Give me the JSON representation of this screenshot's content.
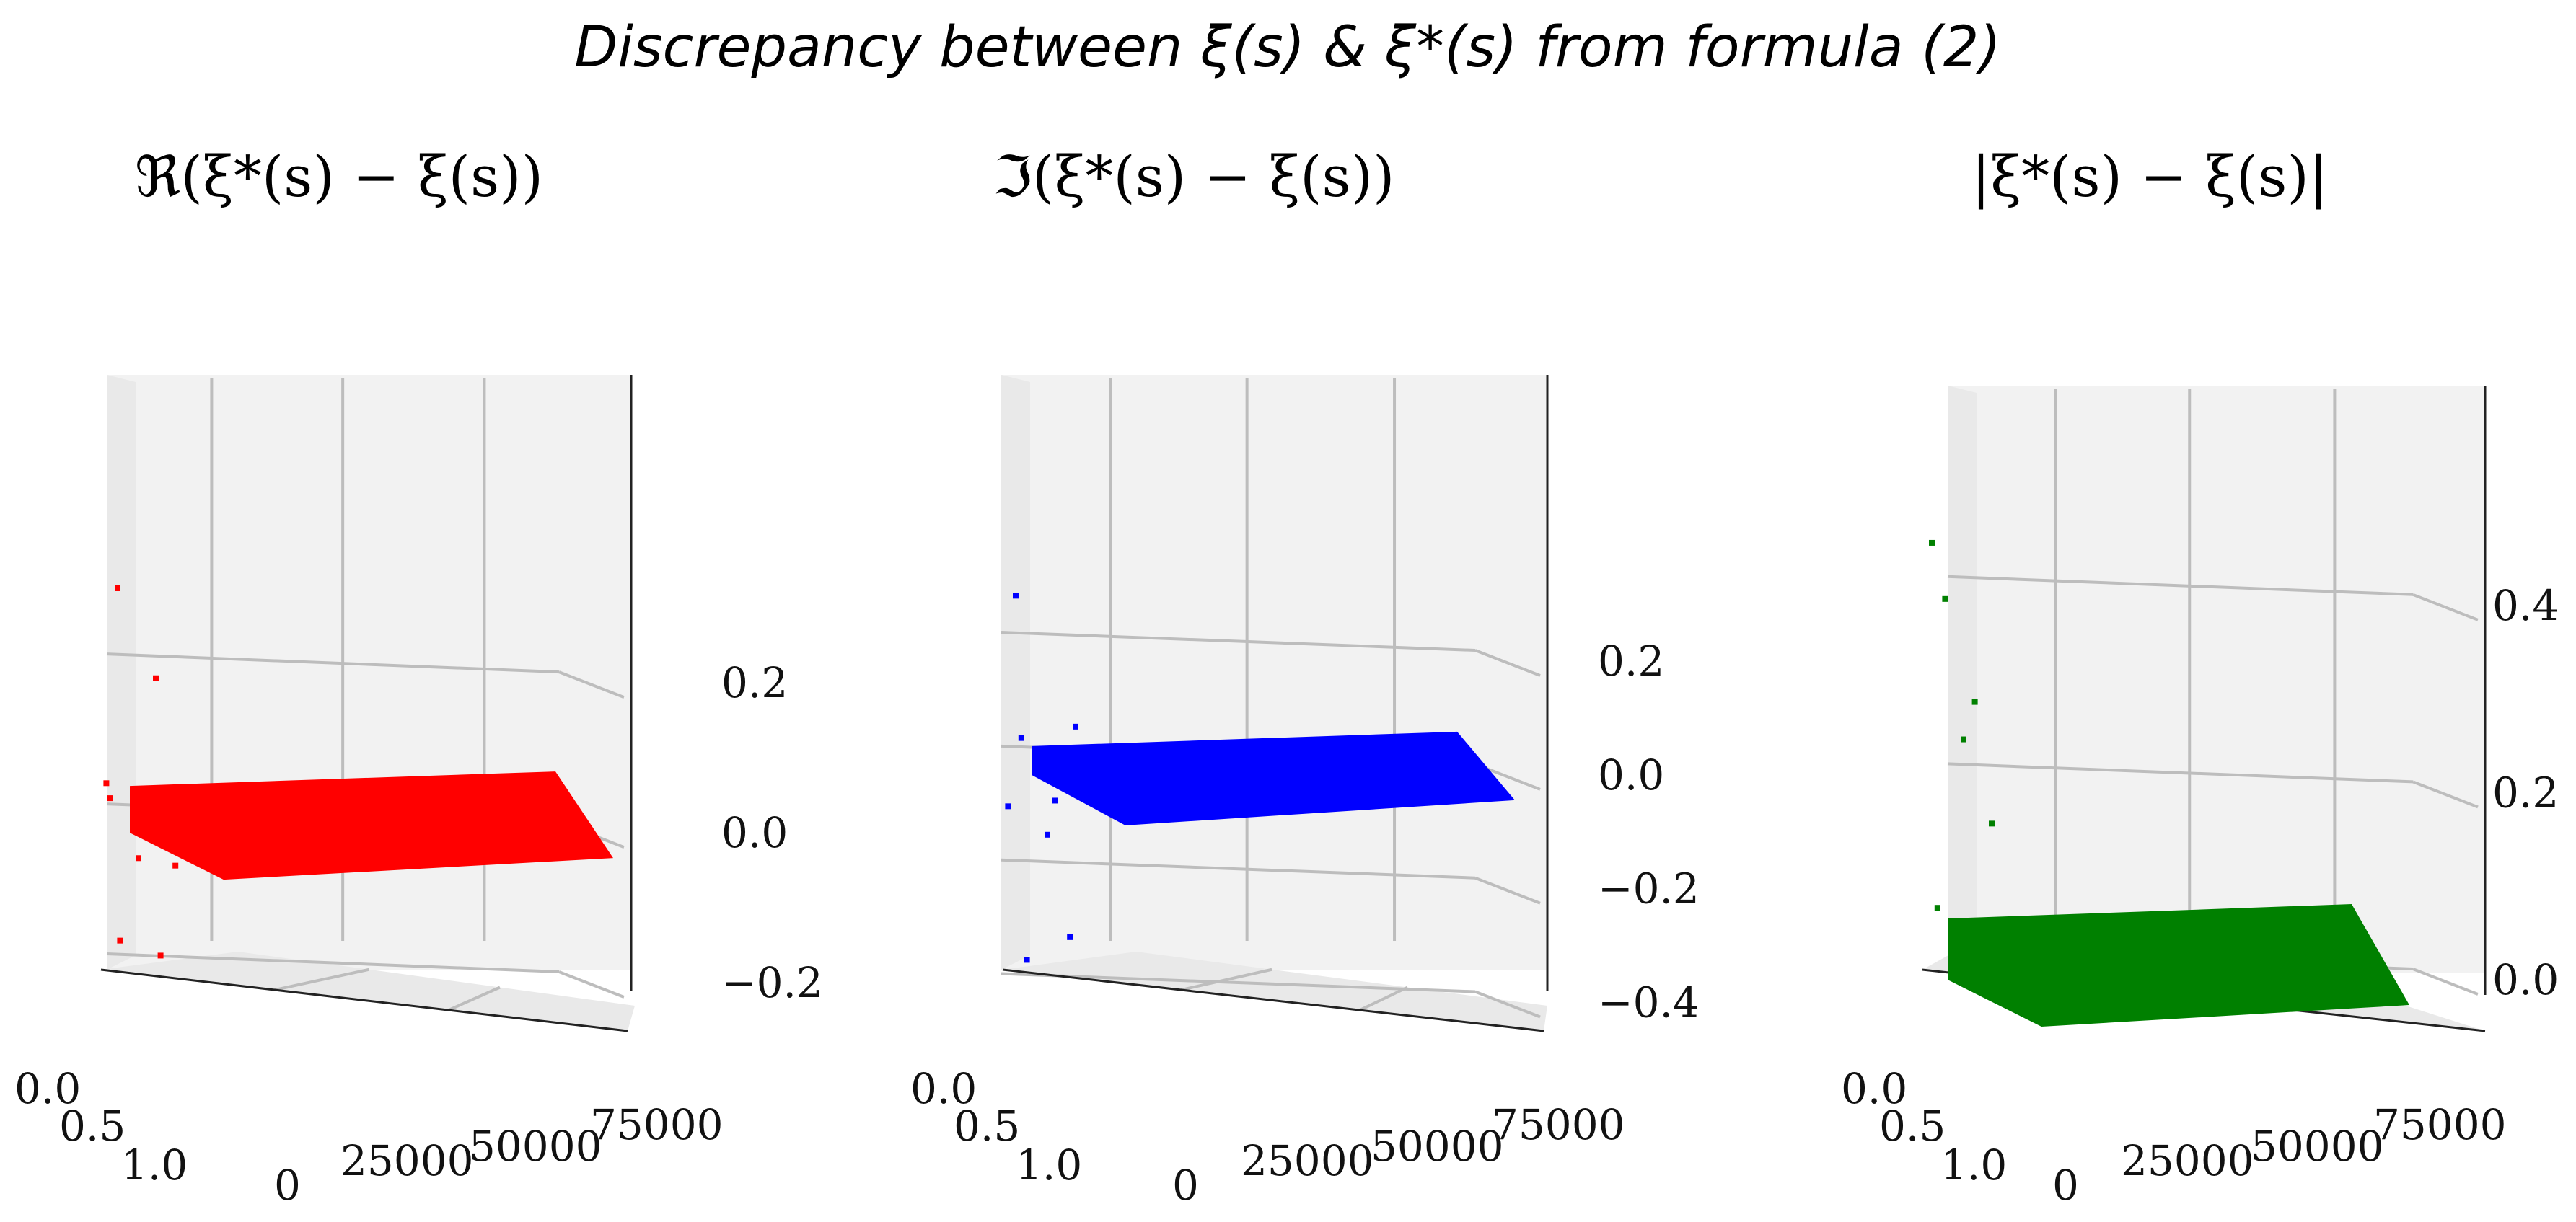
{
  "figure": {
    "title": "Discrepancy between ξ(s) & ξ*(s) from formula (2)"
  },
  "chart_data": [
    {
      "type": "scatter",
      "title": "ℜ(ξ*(s) − ξ(s))",
      "color": "#ff0000",
      "x_ticks": [
        "0.0",
        "0.5",
        "1.0"
      ],
      "y_ticks": [
        "0",
        "25000",
        "50000",
        "75000"
      ],
      "z_ticks": [
        "−0.2",
        "0.0",
        "0.2"
      ],
      "zlim": [
        -0.25,
        0.38
      ],
      "surface_z": 0.0,
      "outliers": [
        {
          "x": 0.05,
          "y": 400,
          "z": 0.33
        },
        {
          "x": 0.15,
          "y": 900,
          "z": 0.21
        },
        {
          "x": 0.08,
          "y": 300,
          "z": -0.14
        },
        {
          "x": 0.12,
          "y": 1200,
          "z": -0.16
        },
        {
          "x": 0.03,
          "y": 200,
          "z": 0.07
        },
        {
          "x": 0.04,
          "y": 250,
          "z": 0.05
        },
        {
          "x": 0.1,
          "y": 700,
          "z": -0.03
        },
        {
          "x": 0.14,
          "y": 1500,
          "z": -0.04
        }
      ]
    },
    {
      "type": "scatter",
      "title": "ℑ(ξ*(s) − ξ(s))",
      "color": "#0000ff",
      "x_ticks": [
        "0.0",
        "0.5",
        "1.0"
      ],
      "y_ticks": [
        "0",
        "25000",
        "50000",
        "75000"
      ],
      "z_ticks": [
        "−0.4",
        "−0.2",
        "0.0",
        "0.2"
      ],
      "zlim": [
        -0.45,
        0.38
      ],
      "surface_z": 0.0,
      "outliers": [
        {
          "x": 0.05,
          "y": 300,
          "z": 0.32
        },
        {
          "x": 0.15,
          "y": 1400,
          "z": 0.09
        },
        {
          "x": 0.06,
          "y": 400,
          "z": 0.07
        },
        {
          "x": 0.1,
          "y": 900,
          "z": -0.1
        },
        {
          "x": 0.07,
          "y": 500,
          "z": -0.32
        },
        {
          "x": 0.14,
          "y": 1300,
          "z": -0.28
        },
        {
          "x": 0.03,
          "y": 200,
          "z": -0.05
        },
        {
          "x": 0.12,
          "y": 1000,
          "z": -0.04
        }
      ]
    },
    {
      "type": "scatter",
      "title": "|ξ*(s) − ξ(s)|",
      "color": "#008000",
      "x_ticks": [
        "0.0",
        "0.5",
        "1.0"
      ],
      "y_ticks": [
        "0",
        "25000",
        "50000",
        "75000"
      ],
      "z_ticks": [
        "0.0",
        "0.2",
        "0.4"
      ],
      "zlim": [
        -0.02,
        0.5
      ],
      "surface_z": 0.0,
      "outliers": [
        {
          "x": 0.05,
          "y": 300,
          "z": 0.47
        },
        {
          "x": 0.08,
          "y": 500,
          "z": 0.41
        },
        {
          "x": 0.12,
          "y": 1100,
          "z": 0.3
        },
        {
          "x": 0.1,
          "y": 900,
          "z": 0.26
        },
        {
          "x": 0.15,
          "y": 1400,
          "z": 0.17
        },
        {
          "x": 0.06,
          "y": 400,
          "z": 0.08
        },
        {
          "x": 0.09,
          "y": 800,
          "z": 0.06
        },
        {
          "x": 0.13,
          "y": 1200,
          "z": 0.05
        }
      ]
    }
  ]
}
